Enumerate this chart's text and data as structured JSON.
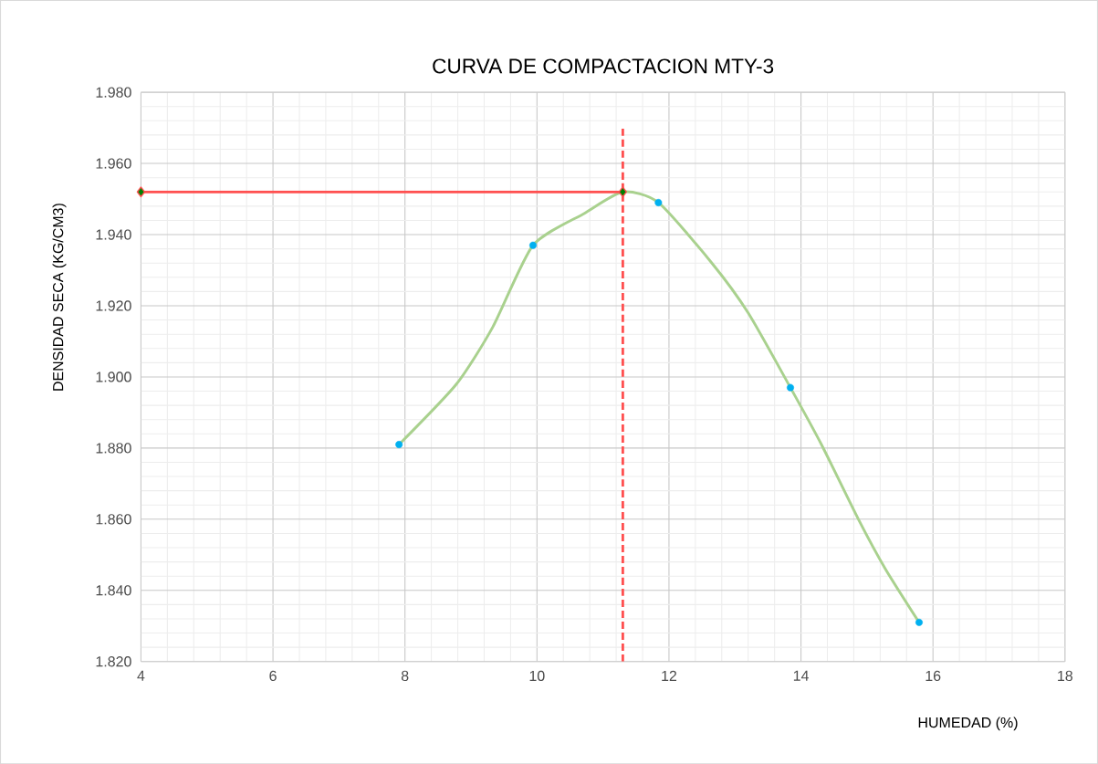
{
  "chart_data": {
    "type": "scatter",
    "title": "CURVA DE COMPACTACION MTY-3",
    "xlabel": "HUMEDAD  (%)",
    "ylabel": "DENSIDAD SECA (KG/CM3)",
    "xlim": [
      4,
      18
    ],
    "xticks": [
      4,
      6,
      8,
      10,
      12,
      14,
      16,
      18
    ],
    "ylim": [
      1.82,
      1.98
    ],
    "yticks": [
      {
        "value": 1.82,
        "label": "1.820"
      },
      {
        "value": 1.84,
        "label": "1.840"
      },
      {
        "value": 1.86,
        "label": "1.860"
      },
      {
        "value": 1.88,
        "label": "1.880"
      },
      {
        "value": 1.9,
        "label": "1.900"
      },
      {
        "value": 1.92,
        "label": "1.920"
      },
      {
        "value": 1.94,
        "label": "1.940"
      },
      {
        "value": 1.96,
        "label": "1.960"
      },
      {
        "value": 1.98,
        "label": "1.980"
      }
    ],
    "grid": true,
    "series": [
      {
        "type": "line",
        "color": "#a9d18e",
        "marker": "none",
        "line_style": "solid",
        "x": [
          7.91,
          8.78,
          9.33,
          9.94,
          10.72,
          11.3,
          11.84,
          12.65,
          13.2,
          13.84,
          14.31,
          14.87,
          15.28,
          15.79
        ],
        "values": [
          1.881,
          1.898,
          1.914,
          1.937,
          1.946,
          1.952,
          1.949,
          1.932,
          1.918,
          1.897,
          1.881,
          1.86,
          1.846,
          1.831
        ]
      },
      {
        "type": "line",
        "color": "#ff5050",
        "marker": "diamond",
        "line_style": "solid",
        "x": [
          4,
          11.3
        ],
        "values": [
          1.952,
          1.952
        ]
      },
      {
        "type": "line",
        "color": "#ff5050",
        "marker": "none",
        "line_style": "dashed",
        "x": [
          11.3,
          11.3
        ],
        "values": [
          1.82,
          1.97
        ]
      },
      {
        "type": "scatter",
        "color": "#00b0f0",
        "marker": "circle",
        "x": [
          7.91,
          9.94,
          11.84,
          13.84,
          15.79
        ],
        "values": [
          1.881,
          1.937,
          1.949,
          1.897,
          1.831
        ]
      }
    ]
  }
}
